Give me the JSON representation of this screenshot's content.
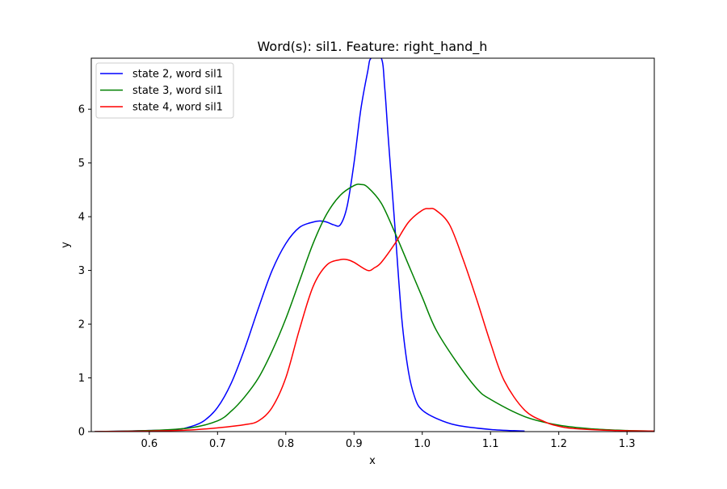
{
  "chart_data": {
    "type": "line",
    "title": "Word(s): sil1. Feature: right_hand_h",
    "xlabel": "x",
    "ylabel": "y",
    "xlim": [
      0.515,
      1.34
    ],
    "ylim": [
      0,
      6.95
    ],
    "grid": false,
    "legend_position": "top-left",
    "x_ticks": [
      0.6,
      0.7,
      0.8,
      0.9,
      1.0,
      1.1,
      1.2,
      1.3
    ],
    "x_tick_labels": [
      "0.6",
      "0.7",
      "0.8",
      "0.9",
      "1.0",
      "1.1",
      "1.2",
      "1.3"
    ],
    "y_ticks": [
      0,
      1,
      2,
      3,
      4,
      5,
      6
    ],
    "y_tick_labels": [
      "0",
      "1",
      "2",
      "3",
      "4",
      "5",
      "6"
    ],
    "series": [
      {
        "name": "state 2, word sil1",
        "color": "#0000ff",
        "x": [
          0.52,
          0.6,
          0.64,
          0.66,
          0.68,
          0.7,
          0.72,
          0.74,
          0.76,
          0.78,
          0.8,
          0.82,
          0.84,
          0.85,
          0.86,
          0.87,
          0.88,
          0.89,
          0.9,
          0.91,
          0.92,
          0.925,
          0.94,
          0.945,
          0.95,
          0.96,
          0.97,
          0.98,
          0.99,
          1.0,
          1.02,
          1.05,
          1.1,
          1.15
        ],
        "y": [
          0.0,
          0.02,
          0.04,
          0.09,
          0.2,
          0.45,
          0.9,
          1.55,
          2.3,
          3.0,
          3.5,
          3.8,
          3.9,
          3.92,
          3.9,
          3.85,
          3.85,
          4.2,
          5.0,
          6.0,
          6.7,
          6.95,
          6.95,
          6.4,
          5.5,
          3.8,
          2.1,
          1.1,
          0.6,
          0.4,
          0.25,
          0.12,
          0.04,
          0.01
        ]
      },
      {
        "name": "state 3, word sil1",
        "color": "#008000",
        "x": [
          0.52,
          0.6,
          0.66,
          0.7,
          0.72,
          0.74,
          0.76,
          0.78,
          0.8,
          0.82,
          0.84,
          0.86,
          0.88,
          0.9,
          0.91,
          0.92,
          0.94,
          0.96,
          0.98,
          1.0,
          1.02,
          1.05,
          1.08,
          1.1,
          1.15,
          1.2,
          1.25,
          1.3,
          1.34
        ],
        "y": [
          0.0,
          0.02,
          0.07,
          0.2,
          0.38,
          0.65,
          1.0,
          1.5,
          2.1,
          2.8,
          3.5,
          4.05,
          4.4,
          4.58,
          4.6,
          4.55,
          4.25,
          3.7,
          3.1,
          2.5,
          1.9,
          1.3,
          0.8,
          0.6,
          0.28,
          0.12,
          0.05,
          0.02,
          0.01
        ]
      },
      {
        "name": "state 4, word sil1",
        "color": "#ff0000",
        "x": [
          0.52,
          0.6,
          0.66,
          0.7,
          0.74,
          0.76,
          0.78,
          0.8,
          0.82,
          0.84,
          0.86,
          0.88,
          0.89,
          0.9,
          0.92,
          0.93,
          0.94,
          0.96,
          0.98,
          1.0,
          1.01,
          1.02,
          1.04,
          1.06,
          1.08,
          1.1,
          1.12,
          1.15,
          1.18,
          1.2,
          1.22,
          1.26,
          1.3,
          1.34
        ],
        "y": [
          0.0,
          0.01,
          0.03,
          0.07,
          0.13,
          0.2,
          0.45,
          1.0,
          1.9,
          2.7,
          3.1,
          3.2,
          3.2,
          3.15,
          3.0,
          3.05,
          3.15,
          3.5,
          3.9,
          4.12,
          4.15,
          4.12,
          3.85,
          3.2,
          2.45,
          1.65,
          0.95,
          0.4,
          0.18,
          0.1,
          0.06,
          0.03,
          0.015,
          0.01
        ]
      }
    ]
  }
}
